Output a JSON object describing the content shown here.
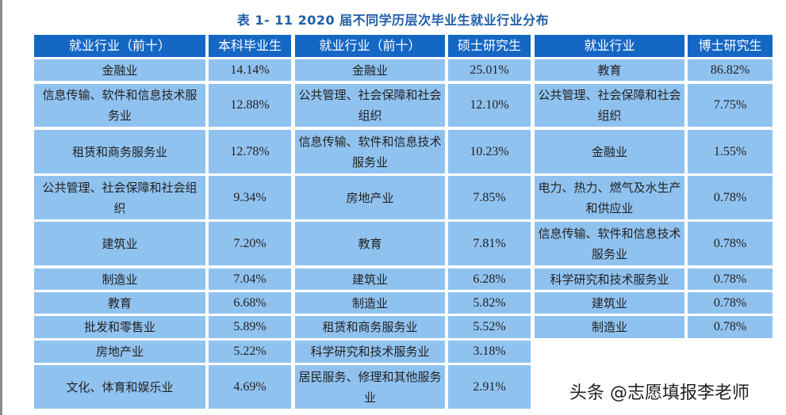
{
  "title": "表 1- 11    2020 届不同学历层次毕业生就业行业分布",
  "headers": [
    "就业行业（前十）",
    "本科毕业生",
    "就业行业（前十）",
    "硕士研究生",
    "就业行业",
    "博士研究生"
  ],
  "undergraduate": [
    {
      "industry": "金融业",
      "pct": "14.14%"
    },
    {
      "industry": "信息传输、软件和信息技术服务业",
      "pct": "12.88%"
    },
    {
      "industry": "租赁和商务服务业",
      "pct": "12.78%"
    },
    {
      "industry": "公共管理、社会保障和社会组织",
      "pct": "9.34%"
    },
    {
      "industry": "建筑业",
      "pct": "7.20%"
    },
    {
      "industry": "制造业",
      "pct": "7.04%"
    },
    {
      "industry": "教育",
      "pct": "6.68%"
    },
    {
      "industry": "批发和零售业",
      "pct": "5.89%"
    },
    {
      "industry": "房地产业",
      "pct": "5.22%"
    },
    {
      "industry": "文化、体育和娱乐业",
      "pct": "4.69%"
    }
  ],
  "master": [
    {
      "industry": "金融业",
      "pct": "25.01%"
    },
    {
      "industry": "公共管理、社会保障和社会组织",
      "pct": "12.10%"
    },
    {
      "industry": "信息传输、软件和信息技术服务业",
      "pct": "10.23%"
    },
    {
      "industry": "房地产业",
      "pct": "7.85%"
    },
    {
      "industry": "教育",
      "pct": "7.81%"
    },
    {
      "industry": "建筑业",
      "pct": "6.28%"
    },
    {
      "industry": "制造业",
      "pct": "5.82%"
    },
    {
      "industry": "租赁和商务服务业",
      "pct": "5.52%"
    },
    {
      "industry": "科学研究和技术服务业",
      "pct": "3.18%"
    },
    {
      "industry": "居民服务、修理和其他服务业",
      "pct": "2.91%"
    }
  ],
  "doctoral": [
    {
      "industry": "教育",
      "pct": "86.82%"
    },
    {
      "industry": "公共管理、社会保障和社会组织",
      "pct": "7.75%"
    },
    {
      "industry": "金融业",
      "pct": "1.55%"
    },
    {
      "industry": "电力、热力、燃气及水生产和供应业",
      "pct": "0.78%"
    },
    {
      "industry": "信息传输、软件和信息技术服务业",
      "pct": "0.78%"
    },
    {
      "industry": "科学研究和技术服务业",
      "pct": "0.78%"
    },
    {
      "industry": "建筑业",
      "pct": "0.78%"
    },
    {
      "industry": "制造业",
      "pct": "0.78%"
    }
  ],
  "watermark": "头条 @志愿填报李老师",
  "colors": {
    "header_bg": "#1567c4",
    "cell_bg": "#90c2f0",
    "title": "#1f5fa8"
  }
}
